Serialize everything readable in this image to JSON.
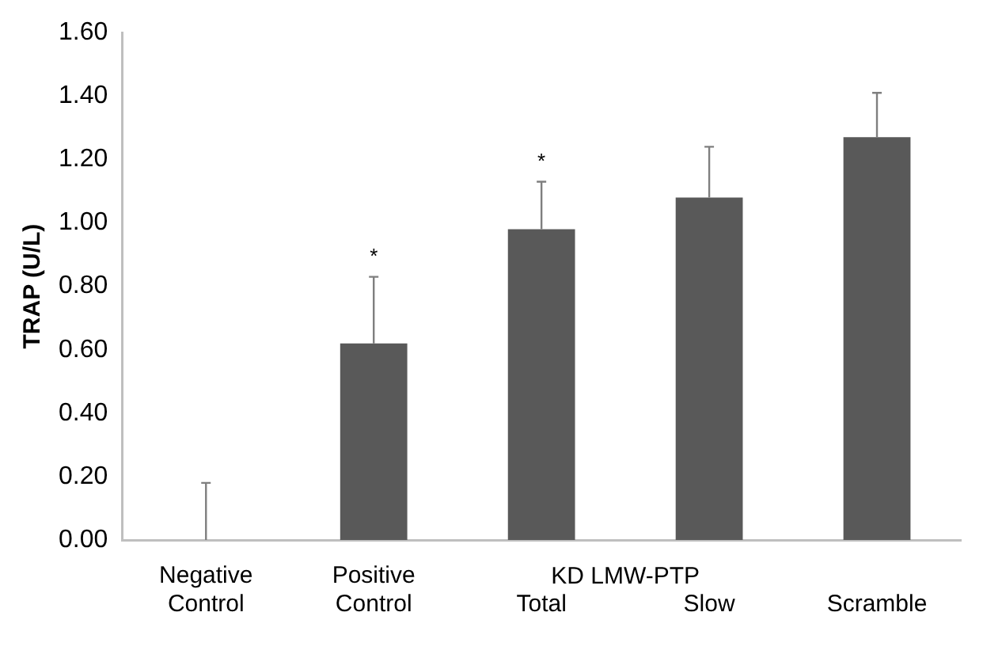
{
  "chart_data": {
    "type": "bar",
    "ylabel": "TRAP (U/L)",
    "categories": [
      "Negative Control",
      "Positive Control",
      "Total",
      "Slow",
      "Scramble"
    ],
    "values": [
      0,
      0.62,
      0.98,
      1.08,
      1.27
    ],
    "errors": [
      [
        0,
        0.18
      ],
      [
        0.62,
        0.83
      ],
      [
        0.98,
        1.13
      ],
      [
        1.08,
        1.24
      ],
      [
        1.27,
        1.41
      ]
    ],
    "color": "#595959",
    "ylim": [
      0,
      1.6
    ],
    "yticks": [
      {
        "value": 0,
        "label": "0.00"
      },
      {
        "value": 0.2,
        "label": "0.20"
      },
      {
        "value": 0.4,
        "label": "0.40"
      },
      {
        "value": 0.6,
        "label": "0.60"
      },
      {
        "value": 0.8,
        "label": "0.80"
      },
      {
        "value": 1.0,
        "label": "1.00"
      },
      {
        "value": 1.2,
        "label": "1.20"
      },
      {
        "value": 1.4,
        "label": "1.40"
      },
      {
        "value": 1.6,
        "label": "1.60"
      }
    ],
    "grid": false,
    "legend": false,
    "annotations": [
      "KD LMW-PTP",
      "*",
      "*"
    ]
  }
}
